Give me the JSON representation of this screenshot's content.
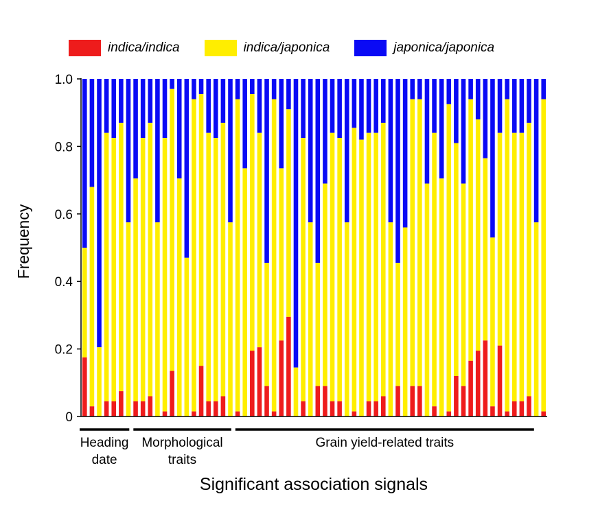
{
  "chart_data": {
    "type": "bar",
    "stacked": true,
    "ylabel": "Frequency",
    "xlabel": "Significant association signals",
    "ylim": [
      0,
      1.0
    ],
    "yticks": [
      "0",
      "0.2",
      "0.4",
      "0.6",
      "0.8",
      "1.0"
    ],
    "ytick_values": [
      0,
      0.2,
      0.4,
      0.6,
      0.8,
      1.0
    ],
    "legend_position": "top",
    "series": [
      {
        "name": "indica/indica",
        "color": "#ee1c1c"
      },
      {
        "name": "indica/japonica",
        "color": "#ffee00"
      },
      {
        "name": "japonica/japonica",
        "color": "#0a0af5"
      }
    ],
    "groups": [
      {
        "label_line1": "Heading",
        "label_line2": "date",
        "start": 0,
        "end": 6
      },
      {
        "label_line1": "Morphological",
        "label_line2": "traits",
        "start": 7,
        "end": 20
      },
      {
        "label_line1": "Grain yield-related traits",
        "label_line2": "",
        "start": 21,
        "end": 61
      }
    ],
    "indica_indica": [
      0.175,
      0.03,
      0,
      0.045,
      0.045,
      0.075,
      0,
      0.045,
      0.045,
      0.06,
      0,
      0.015,
      0.135,
      0,
      0,
      0.015,
      0.15,
      0.045,
      0.045,
      0.06,
      0,
      0.015,
      0,
      0.195,
      0.205,
      0.09,
      0.015,
      0.225,
      0.295,
      0,
      0.045,
      0,
      0.09,
      0.09,
      0.045,
      0.045,
      0,
      0.015,
      0,
      0.045,
      0.045,
      0.06,
      0,
      0.09,
      0,
      0.09,
      0.09,
      0,
      0.03,
      0,
      0.015,
      0.12,
      0.09,
      0.165,
      0.195,
      0.225,
      0.03,
      0.21,
      0.015,
      0.045,
      0.045,
      0.06,
      0,
      0.015
    ],
    "cumulative_ii_ij": [
      0.5,
      0.68,
      0.205,
      0.84,
      0.825,
      0.87,
      0.575,
      0.705,
      0.825,
      0.87,
      0.575,
      0.825,
      0.97,
      0.705,
      0.47,
      0.94,
      0.955,
      0.84,
      0.825,
      0.87,
      0.575,
      0.94,
      0.735,
      0.955,
      0.84,
      0.455,
      0.94,
      0.735,
      0.91,
      0.145,
      0.825,
      0.575,
      0.455,
      0.69,
      0.84,
      0.825,
      0.575,
      0.855,
      0.82,
      0.84,
      0.84,
      0.87,
      0.575,
      0.455,
      0.56,
      0.94,
      0.94,
      0.69,
      0.84,
      0.705,
      0.925,
      0.81,
      0.69,
      0.94,
      0.88,
      0.765,
      0.53,
      0.84,
      0.94,
      0.84,
      0.84,
      0.87,
      0.575,
      0.94
    ]
  }
}
